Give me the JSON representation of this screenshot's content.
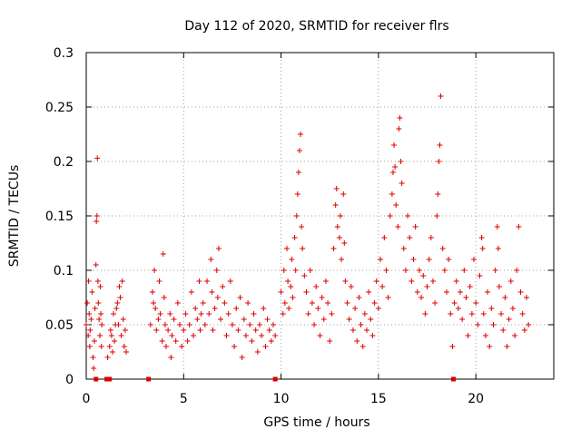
{
  "chart_data": {
    "type": "scatter",
    "title": "Day 112 of 2020, SRMTID for receiver flrs",
    "xlabel": "GPS time / hours",
    "ylabel": "SRMTID / TECUs",
    "xlim": [
      0,
      24
    ],
    "ylim": [
      0,
      0.3
    ],
    "x_ticks": [
      0,
      5,
      10,
      15,
      20
    ],
    "x_tick_labels": [
      "0",
      "5",
      "10",
      "15",
      "20"
    ],
    "y_ticks": [
      0,
      0.05,
      0.1,
      0.15,
      0.2,
      0.25,
      0.3
    ],
    "y_tick_labels": [
      "0",
      "0.05",
      "0.1",
      "0.15",
      "0.2",
      "0.25",
      "0.3"
    ],
    "grid": true,
    "marker": "+",
    "series": [
      {
        "color": "#dd0000",
        "points": [
          [
            0.0,
            0.05
          ],
          [
            0.05,
            0.07
          ],
          [
            0.1,
            0.04
          ],
          [
            0.12,
            0.09
          ],
          [
            0.15,
            0.06
          ],
          [
            0.18,
            0.03
          ],
          [
            0.2,
            0.045
          ],
          [
            0.25,
            0.055
          ],
          [
            0.3,
            0.08
          ],
          [
            0.35,
            0.02
          ],
          [
            0.38,
            0.01
          ],
          [
            0.42,
            0.035
          ],
          [
            0.45,
            0.065
          ],
          [
            0.5,
            0.105
          ],
          [
            0.52,
            0.145
          ],
          [
            0.55,
            0.15
          ],
          [
            0.57,
            0.203
          ],
          [
            0.6,
            0.09
          ],
          [
            0.62,
            0.07
          ],
          [
            0.66,
            0.055
          ],
          [
            0.7,
            0.04
          ],
          [
            0.72,
            0.085
          ],
          [
            0.75,
            0.06
          ],
          [
            0.78,
            0.03
          ],
          [
            0.8,
            0.05
          ],
          [
            1.1,
            0.02
          ],
          [
            1.2,
            0.03
          ],
          [
            1.25,
            0.045
          ],
          [
            1.3,
            0.04
          ],
          [
            1.35,
            0.025
          ],
          [
            1.4,
            0.06
          ],
          [
            1.45,
            0.035
          ],
          [
            1.5,
            0.05
          ],
          [
            1.55,
            0.065
          ],
          [
            1.6,
            0.07
          ],
          [
            1.65,
            0.05
          ],
          [
            1.7,
            0.085
          ],
          [
            1.75,
            0.075
          ],
          [
            1.8,
            0.04
          ],
          [
            1.85,
            0.09
          ],
          [
            1.9,
            0.055
          ],
          [
            1.95,
            0.03
          ],
          [
            2.0,
            0.045
          ],
          [
            2.05,
            0.025
          ],
          [
            3.3,
            0.05
          ],
          [
            3.4,
            0.08
          ],
          [
            3.45,
            0.07
          ],
          [
            3.5,
            0.1
          ],
          [
            3.55,
            0.065
          ],
          [
            3.6,
            0.045
          ],
          [
            3.7,
            0.055
          ],
          [
            3.75,
            0.09
          ],
          [
            3.8,
            0.06
          ],
          [
            3.9,
            0.035
          ],
          [
            3.95,
            0.115
          ],
          [
            4.0,
            0.075
          ],
          [
            4.05,
            0.05
          ],
          [
            4.1,
            0.03
          ],
          [
            4.2,
            0.045
          ],
          [
            4.3,
            0.06
          ],
          [
            4.35,
            0.02
          ],
          [
            4.4,
            0.04
          ],
          [
            4.5,
            0.055
          ],
          [
            4.6,
            0.035
          ],
          [
            4.7,
            0.07
          ],
          [
            4.8,
            0.05
          ],
          [
            4.9,
            0.03
          ],
          [
            5.0,
            0.045
          ],
          [
            5.1,
            0.06
          ],
          [
            5.2,
            0.035
          ],
          [
            5.3,
            0.05
          ],
          [
            5.4,
            0.08
          ],
          [
            5.5,
            0.04
          ],
          [
            5.6,
            0.065
          ],
          [
            5.7,
            0.055
          ],
          [
            5.8,
            0.09
          ],
          [
            5.85,
            0.045
          ],
          [
            5.9,
            0.06
          ],
          [
            6.0,
            0.07
          ],
          [
            6.1,
            0.05
          ],
          [
            6.2,
            0.09
          ],
          [
            6.3,
            0.06
          ],
          [
            6.4,
            0.11
          ],
          [
            6.45,
            0.08
          ],
          [
            6.5,
            0.045
          ],
          [
            6.6,
            0.065
          ],
          [
            6.7,
            0.1
          ],
          [
            6.75,
            0.075
          ],
          [
            6.8,
            0.12
          ],
          [
            6.9,
            0.055
          ],
          [
            7.0,
            0.085
          ],
          [
            7.1,
            0.07
          ],
          [
            7.2,
            0.04
          ],
          [
            7.3,
            0.06
          ],
          [
            7.4,
            0.09
          ],
          [
            7.5,
            0.05
          ],
          [
            7.6,
            0.03
          ],
          [
            7.7,
            0.065
          ],
          [
            7.8,
            0.045
          ],
          [
            7.9,
            0.075
          ],
          [
            8.0,
            0.02
          ],
          [
            8.1,
            0.055
          ],
          [
            8.2,
            0.04
          ],
          [
            8.3,
            0.07
          ],
          [
            8.4,
            0.05
          ],
          [
            8.5,
            0.035
          ],
          [
            8.6,
            0.06
          ],
          [
            8.7,
            0.045
          ],
          [
            8.8,
            0.025
          ],
          [
            8.9,
            0.05
          ],
          [
            9.0,
            0.04
          ],
          [
            9.1,
            0.065
          ],
          [
            9.2,
            0.03
          ],
          [
            9.3,
            0.055
          ],
          [
            9.4,
            0.045
          ],
          [
            9.5,
            0.035
          ],
          [
            9.6,
            0.05
          ],
          [
            9.7,
            0.04
          ],
          [
            10.0,
            0.08
          ],
          [
            10.1,
            0.06
          ],
          [
            10.15,
            0.1
          ],
          [
            10.2,
            0.07
          ],
          [
            10.3,
            0.12
          ],
          [
            10.35,
            0.09
          ],
          [
            10.4,
            0.065
          ],
          [
            10.5,
            0.085
          ],
          [
            10.55,
            0.11
          ],
          [
            10.6,
            0.075
          ],
          [
            10.7,
            0.13
          ],
          [
            10.75,
            0.1
          ],
          [
            10.8,
            0.15
          ],
          [
            10.85,
            0.17
          ],
          [
            10.9,
            0.19
          ],
          [
            10.95,
            0.21
          ],
          [
            11.0,
            0.225
          ],
          [
            11.05,
            0.14
          ],
          [
            11.1,
            0.12
          ],
          [
            11.2,
            0.095
          ],
          [
            11.3,
            0.08
          ],
          [
            11.4,
            0.06
          ],
          [
            11.5,
            0.1
          ],
          [
            11.6,
            0.07
          ],
          [
            11.7,
            0.05
          ],
          [
            11.8,
            0.085
          ],
          [
            11.9,
            0.065
          ],
          [
            12.0,
            0.04
          ],
          [
            12.1,
            0.075
          ],
          [
            12.2,
            0.055
          ],
          [
            12.3,
            0.09
          ],
          [
            12.4,
            0.07
          ],
          [
            12.5,
            0.035
          ],
          [
            12.6,
            0.06
          ],
          [
            12.7,
            0.12
          ],
          [
            12.8,
            0.16
          ],
          [
            12.85,
            0.175
          ],
          [
            12.9,
            0.14
          ],
          [
            13.0,
            0.13
          ],
          [
            13.05,
            0.15
          ],
          [
            13.1,
            0.11
          ],
          [
            13.2,
            0.17
          ],
          [
            13.25,
            0.125
          ],
          [
            13.3,
            0.09
          ],
          [
            13.4,
            0.07
          ],
          [
            13.5,
            0.055
          ],
          [
            13.6,
            0.085
          ],
          [
            13.7,
            0.045
          ],
          [
            13.8,
            0.065
          ],
          [
            13.9,
            0.035
          ],
          [
            14.0,
            0.075
          ],
          [
            14.1,
            0.05
          ],
          [
            14.2,
            0.03
          ],
          [
            14.3,
            0.06
          ],
          [
            14.4,
            0.045
          ],
          [
            14.5,
            0.08
          ],
          [
            14.6,
            0.055
          ],
          [
            14.7,
            0.04
          ],
          [
            14.8,
            0.07
          ],
          [
            14.9,
            0.09
          ],
          [
            15.0,
            0.065
          ],
          [
            15.1,
            0.11
          ],
          [
            15.2,
            0.085
          ],
          [
            15.3,
            0.13
          ],
          [
            15.4,
            0.1
          ],
          [
            15.5,
            0.075
          ],
          [
            15.6,
            0.15
          ],
          [
            15.7,
            0.17
          ],
          [
            15.75,
            0.19
          ],
          [
            15.8,
            0.215
          ],
          [
            15.85,
            0.195
          ],
          [
            15.9,
            0.16
          ],
          [
            16.0,
            0.14
          ],
          [
            16.05,
            0.23
          ],
          [
            16.1,
            0.24
          ],
          [
            16.15,
            0.2
          ],
          [
            16.2,
            0.18
          ],
          [
            16.3,
            0.12
          ],
          [
            16.4,
            0.1
          ],
          [
            16.5,
            0.15
          ],
          [
            16.6,
            0.13
          ],
          [
            16.7,
            0.09
          ],
          [
            16.8,
            0.11
          ],
          [
            16.9,
            0.14
          ],
          [
            17.0,
            0.08
          ],
          [
            17.1,
            0.1
          ],
          [
            17.2,
            0.075
          ],
          [
            17.3,
            0.095
          ],
          [
            17.4,
            0.06
          ],
          [
            17.5,
            0.085
          ],
          [
            17.6,
            0.11
          ],
          [
            17.7,
            0.13
          ],
          [
            17.8,
            0.09
          ],
          [
            17.9,
            0.07
          ],
          [
            18.0,
            0.15
          ],
          [
            18.05,
            0.17
          ],
          [
            18.1,
            0.2
          ],
          [
            18.15,
            0.215
          ],
          [
            18.2,
            0.26
          ],
          [
            18.3,
            0.12
          ],
          [
            18.4,
            0.1
          ],
          [
            18.5,
            0.08
          ],
          [
            18.6,
            0.11
          ],
          [
            18.7,
            0.06
          ],
          [
            18.8,
            0.03
          ],
          [
            18.9,
            0.07
          ],
          [
            19.0,
            0.09
          ],
          [
            19.1,
            0.065
          ],
          [
            19.2,
            0.08
          ],
          [
            19.3,
            0.055
          ],
          [
            19.4,
            0.1
          ],
          [
            19.5,
            0.075
          ],
          [
            19.6,
            0.04
          ],
          [
            19.7,
            0.085
          ],
          [
            19.8,
            0.06
          ],
          [
            19.9,
            0.11
          ],
          [
            20.0,
            0.07
          ],
          [
            20.1,
            0.05
          ],
          [
            20.2,
            0.095
          ],
          [
            20.3,
            0.13
          ],
          [
            20.35,
            0.12
          ],
          [
            20.4,
            0.06
          ],
          [
            20.5,
            0.04
          ],
          [
            20.6,
            0.08
          ],
          [
            20.7,
            0.03
          ],
          [
            20.8,
            0.065
          ],
          [
            20.9,
            0.05
          ],
          [
            21.0,
            0.1
          ],
          [
            21.1,
            0.14
          ],
          [
            21.15,
            0.12
          ],
          [
            21.2,
            0.085
          ],
          [
            21.3,
            0.06
          ],
          [
            21.4,
            0.045
          ],
          [
            21.5,
            0.075
          ],
          [
            21.6,
            0.03
          ],
          [
            21.7,
            0.055
          ],
          [
            21.8,
            0.09
          ],
          [
            21.9,
            0.065
          ],
          [
            22.0,
            0.04
          ],
          [
            22.1,
            0.1
          ],
          [
            22.2,
            0.14
          ],
          [
            22.3,
            0.08
          ],
          [
            22.4,
            0.06
          ],
          [
            22.5,
            0.045
          ],
          [
            22.6,
            0.075
          ],
          [
            22.7,
            0.05
          ]
        ]
      }
    ],
    "zero_markers_x": [
      0.5,
      1.05,
      1.2,
      3.2,
      9.7,
      18.85
    ]
  }
}
